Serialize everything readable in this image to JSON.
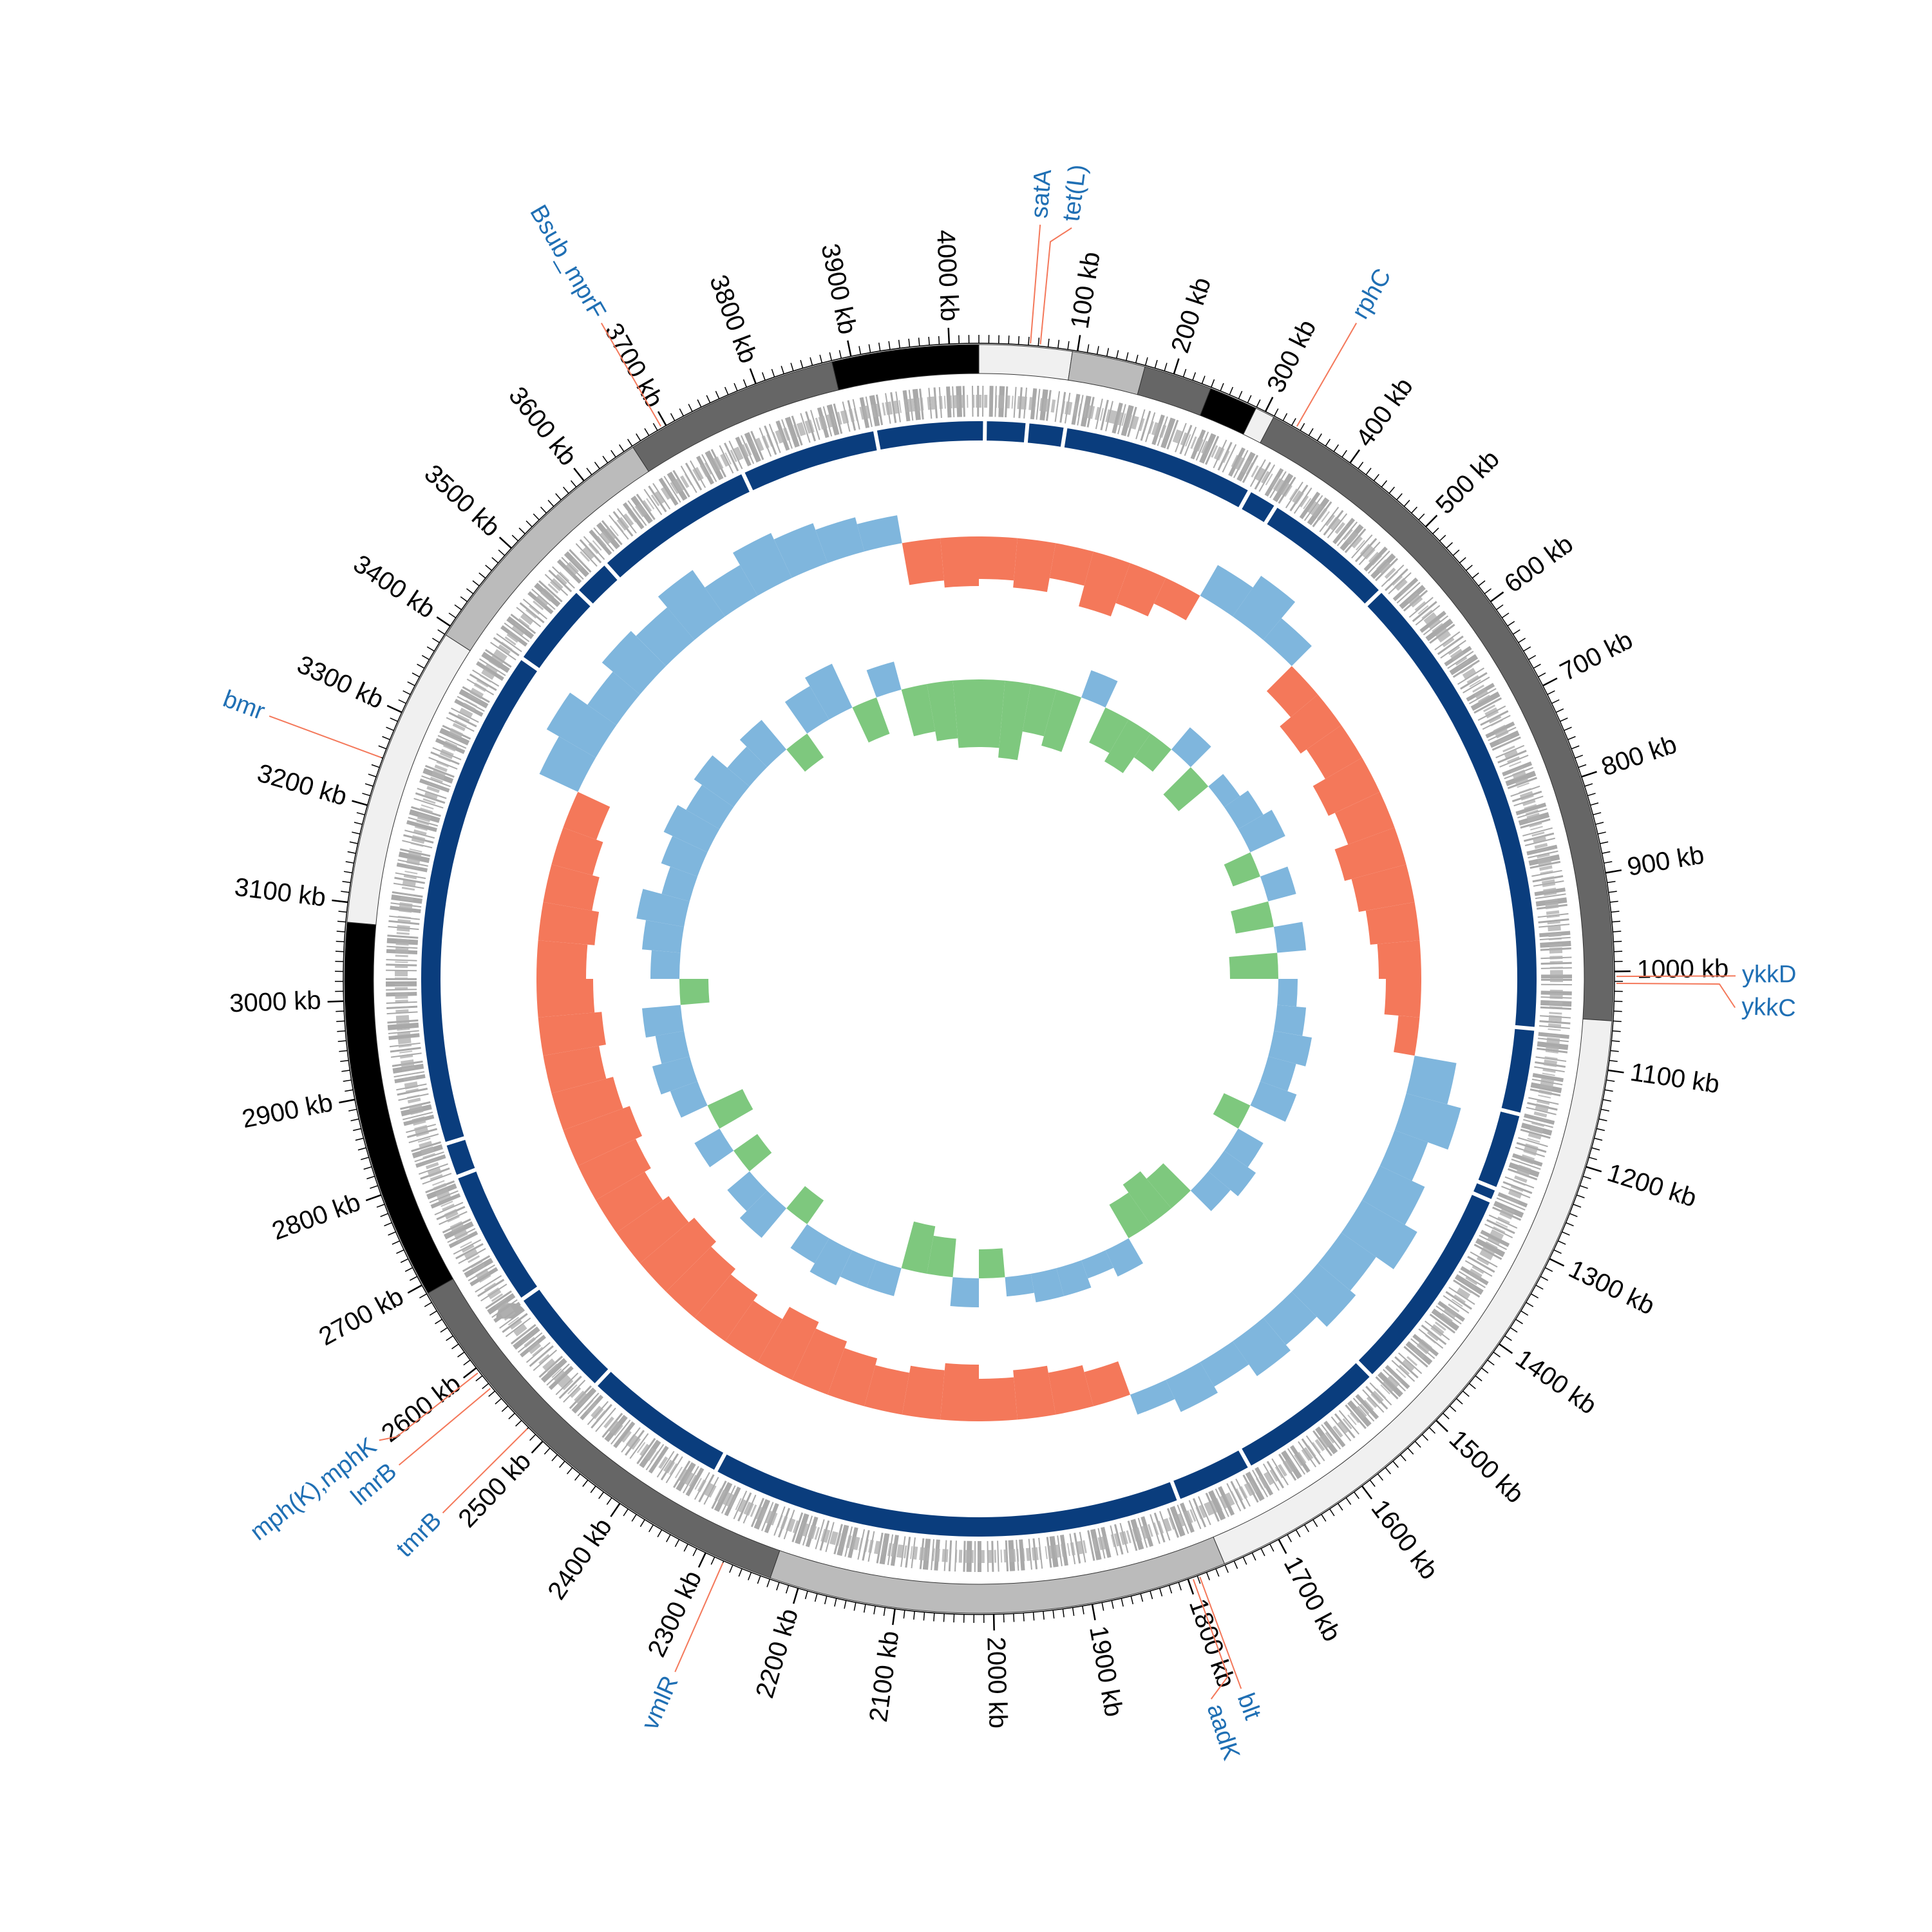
{
  "chart_data": {
    "type": "circular-genome",
    "xlim": [
      0,
      4030
    ],
    "ticks": [
      {
        "value": 100,
        "label": "100 kb"
      },
      {
        "value": 200,
        "label": "200 kb"
      },
      {
        "value": 300,
        "label": "300 kb"
      },
      {
        "value": 400,
        "label": "400 kb"
      },
      {
        "value": 500,
        "label": "500 kb"
      },
      {
        "value": 600,
        "label": "600 kb"
      },
      {
        "value": 700,
        "label": "700 kb"
      },
      {
        "value": 800,
        "label": "800 kb"
      },
      {
        "value": 900,
        "label": "900 kb"
      },
      {
        "value": 1000,
        "label": "1000 kb"
      },
      {
        "value": 1100,
        "label": "1100 kb"
      },
      {
        "value": 1200,
        "label": "1200 kb"
      },
      {
        "value": 1300,
        "label": "1300 kb"
      },
      {
        "value": 1400,
        "label": "1400 kb"
      },
      {
        "value": 1500,
        "label": "1500 kb"
      },
      {
        "value": 1600,
        "label": "1600 kb"
      },
      {
        "value": 1700,
        "label": "1700 kb"
      },
      {
        "value": 1800,
        "label": "1800 kb"
      },
      {
        "value": 1900,
        "label": "1900 kb"
      },
      {
        "value": 2000,
        "label": "2000 kb"
      },
      {
        "value": 2100,
        "label": "2100 kb"
      },
      {
        "value": 2200,
        "label": "2200 kb"
      },
      {
        "value": 2300,
        "label": "2300 kb"
      },
      {
        "value": 2400,
        "label": "2400 kb"
      },
      {
        "value": 2500,
        "label": "2500 kb"
      },
      {
        "value": 2600,
        "label": "2600 kb"
      },
      {
        "value": 2700,
        "label": "2700 kb"
      },
      {
        "value": 2800,
        "label": "2800 kb"
      },
      {
        "value": 2900,
        "label": "2900 kb"
      },
      {
        "value": 3000,
        "label": "3000 kb"
      },
      {
        "value": 3100,
        "label": "3100 kb"
      },
      {
        "value": 3200,
        "label": "3200 kb"
      },
      {
        "value": 3300,
        "label": "3300 kb"
      },
      {
        "value": 3400,
        "label": "3400 kb"
      },
      {
        "value": 3500,
        "label": "3500 kb"
      },
      {
        "value": 3600,
        "label": "3600 kb"
      },
      {
        "value": 3700,
        "label": "3700 kb"
      },
      {
        "value": 3800,
        "label": "3800 kb"
      },
      {
        "value": 3900,
        "label": "3900 kb"
      },
      {
        "value": 4000,
        "label": "4000 kb"
      }
    ],
    "minor_tick_step": 10,
    "contigs": [
      {
        "start": 0,
        "end": 95,
        "color": "#f0f0f0"
      },
      {
        "start": 95,
        "end": 170,
        "color": "#bbbbbb"
      },
      {
        "start": 170,
        "end": 240,
        "color": "#666666"
      },
      {
        "start": 240,
        "end": 290,
        "color": "#000000"
      },
      {
        "start": 290,
        "end": 310,
        "color": "#f0f0f0"
      },
      {
        "start": 310,
        "end": 1050,
        "color": "#666666"
      },
      {
        "start": 1050,
        "end": 1760,
        "color": "#f0f0f0"
      },
      {
        "start": 1760,
        "end": 2230,
        "color": "#bbbbbb"
      },
      {
        "start": 2230,
        "end": 2690,
        "color": "#666666"
      },
      {
        "start": 2690,
        "end": 3080,
        "color": "#000000"
      },
      {
        "start": 3080,
        "end": 3390,
        "color": "#f0f0f0"
      },
      {
        "start": 3390,
        "end": 3660,
        "color": "#bbbbbb"
      },
      {
        "start": 3660,
        "end": 3880,
        "color": "#666666"
      },
      {
        "start": 3880,
        "end": 4030,
        "color": "#000000"
      }
    ],
    "assembly_color": "#0a3d7d",
    "assembly_gaps": [
      7,
      56,
      100,
      325,
      360,
      515,
      1065,
      1165,
      1255,
      1270,
      1515,
      1690,
      1780,
      2330,
      2500,
      2630,
      2790,
      2830,
      3415,
      3515,
      3560,
      3750,
      3910
    ],
    "tracks": [
      {
        "ylim": [
          -1,
          1
        ],
        "positive_color": "#7fb6dd",
        "negative_color": "#f4785a",
        "values": [
          -0.6,
          -0.7,
          -0.5,
          -0.8,
          -0.6,
          -0.4,
          0.5,
          0.7,
          0.4,
          -0.5,
          -0.7,
          -0.6,
          -0.8,
          -0.7,
          -0.9,
          -0.8,
          -0.7,
          -0.6,
          -0.5,
          -0.3,
          0.6,
          0.8,
          0.5,
          0.7,
          0.9,
          0.6,
          0.7,
          0.5,
          0.6,
          0.4,
          0.5,
          0.3,
          -0.5,
          -0.6,
          -0.7,
          -0.6,
          -0.8,
          -0.7,
          -0.6,
          -0.7,
          -0.8,
          -0.9,
          -0.7,
          -0.8,
          -0.9,
          -1.0,
          -0.9,
          -0.8,
          -0.9,
          -1.0,
          -0.9,
          -0.8,
          -0.9,
          -0.8,
          -0.7,
          -0.8,
          -0.7,
          -0.6,
          -0.5,
          0.6,
          0.8,
          0.5,
          0.7,
          0.6,
          0.8,
          0.5,
          0.7,
          0.6,
          0.5,
          0.4,
          -0.6,
          -0.7
        ]
      },
      {
        "ylim": [
          -1,
          1
        ],
        "positive_color": "#7fb6dd",
        "negative_color": "#7ec87e",
        "values": [
          -0.7,
          -0.8,
          -0.5,
          -0.6,
          0.3,
          -0.4,
          -0.5,
          -0.3,
          0.3,
          -0.4,
          0.2,
          0.3,
          0.4,
          -0.3,
          0.3,
          -0.4,
          0.3,
          -0.5,
          0.2,
          0.3,
          0.4,
          0.3,
          0.4,
          -0.3,
          0.3,
          0.4,
          0.3,
          -0.4,
          -0.5,
          -0.4,
          0.3,
          0.2,
          0.3,
          0.3,
          0.2,
          -0.3,
          0.3,
          -0.4,
          -0.5,
          0.3,
          0.3,
          0.4,
          0.3,
          -0.3,
          0.4,
          0.3,
          -0.3,
          0.3,
          -0.4,
          0.3,
          0.4,
          0.3,
          0.4,
          -0.3,
          0.3,
          0.4,
          0.5,
          0.3,
          0.4,
          0.5,
          0.4,
          0.5,
          0.3,
          0.4,
          -0.3,
          0.4,
          0.5,
          -0.4,
          0.3,
          -0.5,
          -0.6,
          -0.7
        ]
      }
    ],
    "annotations": [
      {
        "label": "satA",
        "position": 52
      },
      {
        "label": "tet(L)",
        "position": 62
      },
      {
        "label": "rphC",
        "position": 335
      },
      {
        "label": "ykkD",
        "position": 1005
      },
      {
        "label": "ykkC",
        "position": 1012
      },
      {
        "label": "blt",
        "position": 1788
      },
      {
        "label": "aadK",
        "position": 1795
      },
      {
        "label": "vmlR",
        "position": 2280
      },
      {
        "label": "tmrB",
        "position": 2520
      },
      {
        "label": "lmrB",
        "position": 2575
      },
      {
        "label": "mph(K),mphK",
        "position": 2595
      },
      {
        "label": "bmr",
        "position": 3250
      },
      {
        "label": "Bsub_mprF",
        "position": 3695
      }
    ]
  }
}
